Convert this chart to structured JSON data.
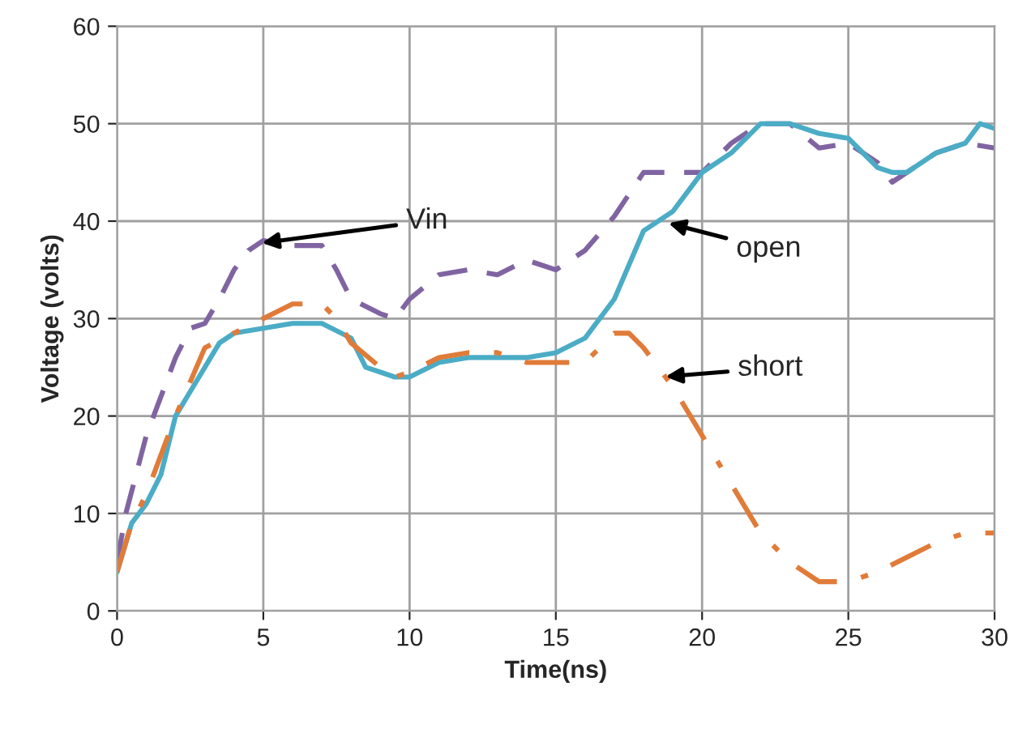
{
  "chart_data": {
    "type": "line",
    "xlabel": "Time(ns)",
    "ylabel": "Voltage (volts)",
    "xlim": [
      0,
      30
    ],
    "xticks": [
      0,
      5,
      10,
      15,
      20,
      25,
      30
    ],
    "ylim": [
      0,
      60
    ],
    "yticks": [
      0,
      10,
      20,
      30,
      40,
      50,
      60
    ],
    "grid": true,
    "series": [
      {
        "color": "#8064a2",
        "line_style": "dashed",
        "x": [
          0,
          0.3,
          1,
          2,
          2.5,
          3,
          3.5,
          4,
          4.5,
          5,
          6,
          7,
          7.5,
          8,
          9,
          9.5,
          10,
          11,
          12,
          13,
          14,
          15,
          15.5,
          16,
          17,
          18,
          19,
          20,
          21,
          22,
          23,
          24,
          25,
          26,
          26.5,
          27,
          28,
          29,
          30
        ],
        "values": [
          5,
          10,
          18,
          26,
          29,
          29.5,
          32,
          35,
          37,
          38,
          37.5,
          37.5,
          35,
          32,
          30.5,
          30,
          32,
          34.5,
          35,
          34.5,
          36,
          35,
          36,
          37,
          40.5,
          45,
          45,
          45,
          48,
          50,
          50,
          47.5,
          48,
          46,
          44,
          45,
          47,
          48,
          47.5
        ]
      },
      {
        "color": "#4bacc6",
        "line_style": "solid",
        "x": [
          0,
          0.5,
          1,
          1.5,
          2,
          2.5,
          3,
          3.5,
          4,
          5,
          6,
          7,
          8,
          8.5,
          9.5,
          10,
          11,
          12,
          13,
          14,
          15,
          16,
          17,
          18,
          19,
          20,
          21,
          22,
          23,
          24,
          25,
          26,
          26.5,
          27,
          28,
          29,
          29.5,
          30
        ],
        "values": [
          4,
          9,
          11,
          14,
          20,
          22.5,
          25,
          27.5,
          28.5,
          29,
          29.5,
          29.5,
          28,
          25,
          24,
          24,
          25.5,
          26,
          26,
          26,
          26.5,
          28,
          32,
          39,
          41,
          45,
          47,
          50,
          50,
          49,
          48.5,
          45.5,
          45,
          45,
          47,
          48,
          50,
          49.5
        ]
      },
      {
        "color": "#e07b39",
        "line_style": "dashdot",
        "x": [
          0,
          0.5,
          1,
          2,
          3,
          4,
          5,
          6,
          7,
          7.5,
          8,
          9,
          9.5,
          10,
          11,
          12,
          13,
          14,
          15,
          16,
          17,
          17.5,
          18,
          18.5,
          19,
          20,
          21,
          22,
          23,
          24,
          25,
          26,
          27,
          28,
          29,
          30
        ],
        "values": [
          4,
          9,
          12,
          20,
          27,
          28.5,
          30,
          31.5,
          31.5,
          30,
          27.5,
          25,
          24,
          24.5,
          26,
          26.5,
          26.5,
          25.5,
          25.5,
          25.5,
          28.5,
          28.5,
          27,
          25,
          23,
          18,
          13,
          8,
          5,
          3,
          3,
          4,
          5.5,
          7,
          8,
          8
        ]
      }
    ],
    "annotations": [
      {
        "text": "Vin",
        "x": 4.8,
        "y": 37.7
      },
      {
        "text": "open",
        "x": 18.7,
        "y": 39.9
      },
      {
        "text": "short",
        "x": 18.6,
        "y": 24
      }
    ]
  }
}
